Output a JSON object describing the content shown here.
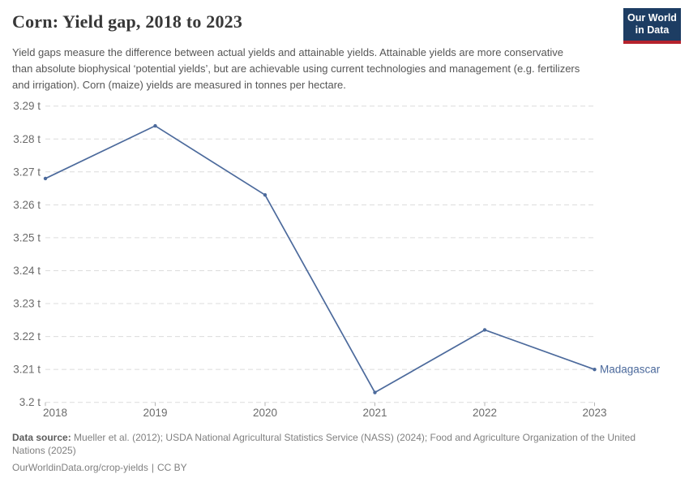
{
  "header": {
    "title": "Corn: Yield gap, 2018 to 2023",
    "subtitle": "Yield gaps measure the difference between actual yields and attainable yields. Attainable yields are more conservative than absolute biophysical ‘potential yields’, but are achievable using current technologies and management (e.g. fertilizers and irrigation). Corn (maize) yields are measured in tonnes per hectare.",
    "logo": {
      "line1": "Our World",
      "line2": "in Data",
      "bg_color": "#1d3d63",
      "accent_color": "#b5232d"
    }
  },
  "chart_data": {
    "type": "line",
    "title": "Corn: Yield gap, 2018 to 2023",
    "unit": "tonnes per hectare",
    "x": [
      2018,
      2019,
      2020,
      2021,
      2022,
      2023
    ],
    "x_tick_labels": [
      "2018",
      "2019",
      "2020",
      "2021",
      "2022",
      "2023"
    ],
    "series": [
      {
        "name": "Madagascar",
        "color": "#4c6a9c",
        "values": [
          3.268,
          3.284,
          3.263,
          3.203,
          3.222,
          3.21
        ]
      }
    ],
    "ylim": [
      3.2,
      3.29
    ],
    "y_ticks": [
      {
        "value": 3.29,
        "label": "3.29 t"
      },
      {
        "value": 3.28,
        "label": "3.28 t"
      },
      {
        "value": 3.27,
        "label": "3.27 t"
      },
      {
        "value": 3.26,
        "label": "3.26 t"
      },
      {
        "value": 3.25,
        "label": "3.25 t"
      },
      {
        "value": 3.24,
        "label": "3.24 t"
      },
      {
        "value": 3.23,
        "label": "3.23 t"
      },
      {
        "value": 3.22,
        "label": "3.22 t"
      },
      {
        "value": 3.21,
        "label": "3.21 t"
      },
      {
        "value": 3.2,
        "label": "3.2 t"
      }
    ],
    "grid": "horizontal-dashed",
    "legend_position": "end-of-line-label"
  },
  "footer": {
    "source_label": "Data source:",
    "source_text": " Mueller et al. (2012); USDA National Agricultural Statistics Service (NASS) (2024); Food and Agriculture Organization of the United Nations (2025)",
    "link_text": "OurWorldinData.org/crop-yields",
    "separator": "|",
    "license_text": "CC BY"
  }
}
